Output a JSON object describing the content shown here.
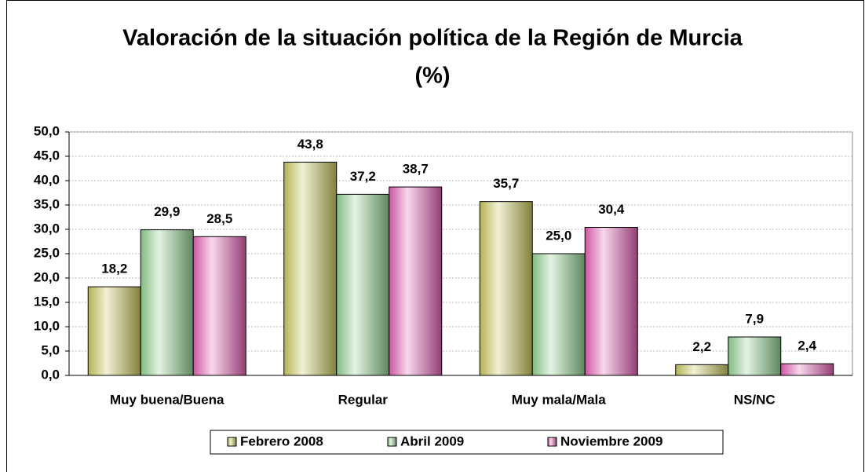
{
  "chart_data": {
    "type": "bar",
    "title": [
      "Valoración de la situación política de la Región de Murcia",
      "(%)"
    ],
    "categories": [
      "Muy buena/Buena",
      "Regular",
      "Muy mala/Mala",
      "NS/NC"
    ],
    "series": [
      {
        "name": "Febrero 2008",
        "color": "#c8c65a",
        "values": [
          18.2,
          43.8,
          35.7,
          2.2
        ],
        "value_labels": [
          "18,2",
          "43,8",
          "35,7",
          "2,2"
        ]
      },
      {
        "name": "Abril 2009",
        "color": "#8fd08f",
        "values": [
          29.9,
          37.2,
          25.0,
          7.9
        ],
        "value_labels": [
          "29,9",
          "37,2",
          "25,0",
          "7,9"
        ]
      },
      {
        "name": "Noviembre 2009",
        "color": "#e45fb4",
        "values": [
          28.5,
          38.7,
          30.4,
          2.4
        ],
        "value_labels": [
          "28,5",
          "38,7",
          "30,4",
          "2,4"
        ]
      }
    ],
    "ylim": [
      0,
      50
    ],
    "yticks": [
      {
        "value": 0,
        "label": "0,0"
      },
      {
        "value": 5,
        "label": "5,0"
      },
      {
        "value": 10,
        "label": "10,0"
      },
      {
        "value": 15,
        "label": "15,0"
      },
      {
        "value": 20,
        "label": "20,0"
      },
      {
        "value": 25,
        "label": "25,0"
      },
      {
        "value": 30,
        "label": "30,0"
      },
      {
        "value": 35,
        "label": "35,0"
      },
      {
        "value": 40,
        "label": "40,0"
      },
      {
        "value": 45,
        "label": "45,0"
      },
      {
        "value": 50,
        "label": "50,0"
      }
    ],
    "grid": true,
    "legend": "bottom"
  }
}
